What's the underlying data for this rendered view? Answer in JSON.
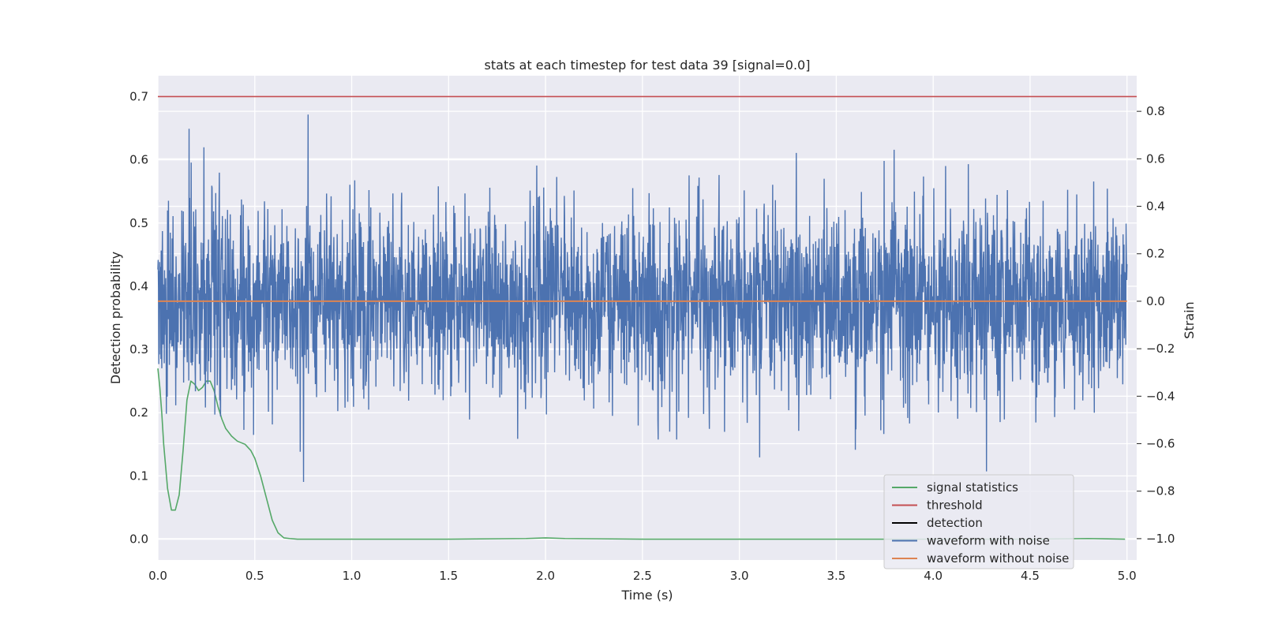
{
  "chart_data": {
    "type": "line",
    "title": "stats at each timestep for test data 39 [signal=0.0]",
    "xlabel": "Time (s)",
    "ylabel": "Detection probability",
    "y2label": "Strain",
    "xlim": [
      0.0,
      5.05
    ],
    "ylim": [
      -0.033,
      0.733
    ],
    "y2lim": [
      -1.09,
      0.95
    ],
    "xticks": [
      0.0,
      0.5,
      1.0,
      1.5,
      2.0,
      2.5,
      3.0,
      3.5,
      4.0,
      4.5,
      5.0
    ],
    "xtick_labels": [
      "0.0",
      "0.5",
      "1.0",
      "1.5",
      "2.0",
      "2.5",
      "3.0",
      "3.5",
      "4.0",
      "4.5",
      "5.0"
    ],
    "yticks": [
      0.0,
      0.1,
      0.2,
      0.3,
      0.4,
      0.5,
      0.6,
      0.7
    ],
    "ytick_labels": [
      "0.0",
      "0.1",
      "0.2",
      "0.3",
      "0.4",
      "0.5",
      "0.6",
      "0.7"
    ],
    "y2ticks": [
      -1.0,
      -0.8,
      -0.6,
      -0.4,
      -0.2,
      0.0,
      0.2,
      0.4,
      0.6,
      0.8
    ],
    "y2tick_labels": [
      "−1.0",
      "−0.8",
      "−0.6",
      "−0.4",
      "−0.2",
      "0.0",
      "0.2",
      "0.4",
      "0.6",
      "0.8"
    ],
    "grid": true,
    "legend_position": "lower-right",
    "series": [
      {
        "name": "signal statistics",
        "axis": "left",
        "color": "#55a868",
        "x": [
          0.0,
          0.01,
          0.02,
          0.03,
          0.05,
          0.07,
          0.09,
          0.11,
          0.13,
          0.15,
          0.17,
          0.19,
          0.21,
          0.23,
          0.25,
          0.27,
          0.29,
          0.31,
          0.33,
          0.35,
          0.38,
          0.41,
          0.45,
          0.48,
          0.5,
          0.53,
          0.56,
          0.59,
          0.62,
          0.65,
          0.68,
          0.72,
          0.8,
          1.0,
          1.5,
          1.9,
          2.0,
          2.1,
          2.5,
          3.0,
          3.5,
          4.0,
          4.5,
          4.8,
          4.99
        ],
        "y": [
          0.27,
          0.24,
          0.2,
          0.15,
          0.08,
          0.046,
          0.046,
          0.07,
          0.14,
          0.22,
          0.25,
          0.245,
          0.235,
          0.24,
          0.25,
          0.25,
          0.235,
          0.21,
          0.19,
          0.175,
          0.163,
          0.155,
          0.15,
          0.14,
          0.128,
          0.1,
          0.065,
          0.03,
          0.01,
          0.002,
          0.001,
          0.0,
          0.0,
          0.0,
          0.0,
          0.001,
          0.002,
          0.001,
          0.0,
          0.0,
          0.0,
          0.0,
          0.0,
          0.001,
          0.0
        ]
      },
      {
        "name": "threshold",
        "axis": "left",
        "color": "#c44e52",
        "x": [
          0.0,
          5.05
        ],
        "y": [
          0.7,
          0.7
        ]
      },
      {
        "name": "detection",
        "axis": "left",
        "color": "#000000",
        "x": [],
        "y": []
      },
      {
        "name": "waveform with noise",
        "axis": "right",
        "color": "#4c72b0",
        "description": "dense gaussian-like noise, approx 0 ± 0.2 std, peaks up to ~0.87 and down to ~-0.85",
        "x_range": [
          0.0,
          5.0
        ],
        "y_range": [
          -0.85,
          0.87
        ]
      },
      {
        "name": "waveform without noise",
        "axis": "right",
        "color": "#dd8452",
        "x": [
          0.0,
          5.0
        ],
        "y": [
          0.0,
          0.0
        ]
      }
    ]
  }
}
